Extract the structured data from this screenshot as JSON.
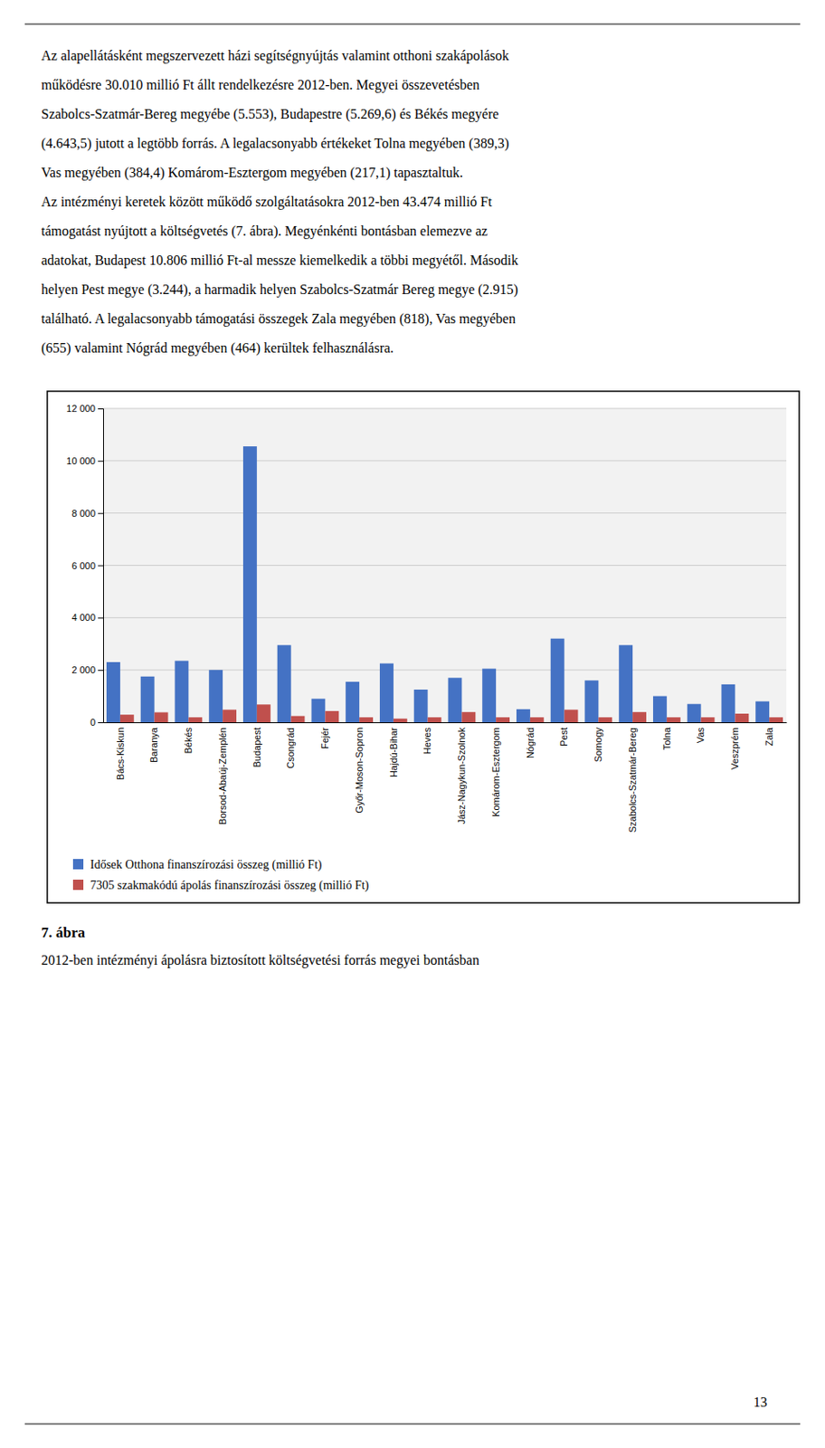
{
  "page_text": [
    "Az alapellátásként megszervezett házi segítségnyújtás valamint otthoni szakápolások",
    "működésre 30.010 millió Ft állt rendelkezésre 2012-ben. Megyei összevetésben",
    "Szabolcs-Szatmár-Bereg megyébe (5.553), Budapestre (5.269,6) és Békés megyére",
    "(4.643,5) jutott a legtöbb forrás. A legalacsonyabb értékeket Tolna megyében (389,3)",
    "Vas megyében (384,4) Komárom-Esztergom megyében (217,1) tapasztaltuk.",
    "Az intézményi keretek között működő szolgáltatásokra 2012-ben 43.474 millió Ft",
    "támogatást nyújtott a költségvetés (7. ábra). Megyénkénti bontásban elemezve az",
    "adatokat, Budapest 10.806 millió Ft-al messze kiemelkedik a többi megyétől. Második",
    "helyen Pest megye (3.244), a harmadik helyen Szabolcs-Szatmár Bereg megye (2.915)",
    "található. A legalacsonyabb támogatási összegek Zala megyében (818), Vas megyében",
    "(655) valamint Nógrád megyében (464) kerültek felhasználásra."
  ],
  "page_number": "13",
  "chart_data": {
    "type": "bar",
    "title": "7. ábra",
    "subtitle": "2012-ben intézményi ápolásra biztosított költségvetési forrás megyei bontásban",
    "categories": [
      "Bács-Kiskun",
      "Baranya",
      "Békés",
      "Borsod-Abaúj-Zemplén",
      "Budapest",
      "Csongrád",
      "Fejér",
      "Győr-Moson-Sopron",
      "Hajdú-Bihar",
      "Heves",
      "Jász-Nagykun-Szolnok",
      "Komárom-Esztergom",
      "Nógrád",
      "Pest",
      "Somogy",
      "Szabolcs-Szatmár-Bereg",
      "Tolna",
      "Vas",
      "Veszprém",
      "Zala"
    ],
    "series": [
      {
        "name": "Idősek Otthona finanszírozási összeg (millió Ft)",
        "color": "#4472C4",
        "values": [
          2300,
          1750,
          2350,
          2000,
          10550,
          2950,
          900,
          1550,
          2250,
          1250,
          1700,
          2050,
          500,
          3200,
          1600,
          2950,
          1000,
          700,
          1450,
          800
        ]
      },
      {
        "name": "7305 szakmakódú ápolás finanszírozási összeg (millió Ft)",
        "color": "#C0504D",
        "values": [
          290,
          380,
          190,
          480,
          680,
          240,
          430,
          190,
          140,
          190,
          390,
          190,
          190,
          480,
          190,
          390,
          190,
          190,
          330,
          190
        ]
      }
    ],
    "ylim": [
      0,
      12000
    ],
    "yticks": [
      0,
      {
        "value": 2000,
        "label": "2 000"
      },
      {
        "value": 4000,
        "label": "4 000"
      },
      {
        "value": 6000,
        "label": "6 000"
      },
      {
        "value": 8000,
        "label": "8 000"
      },
      {
        "value": 10000,
        "label": "10 000"
      },
      {
        "value": 12000,
        "label": "12 000"
      }
    ],
    "grid": true
  }
}
